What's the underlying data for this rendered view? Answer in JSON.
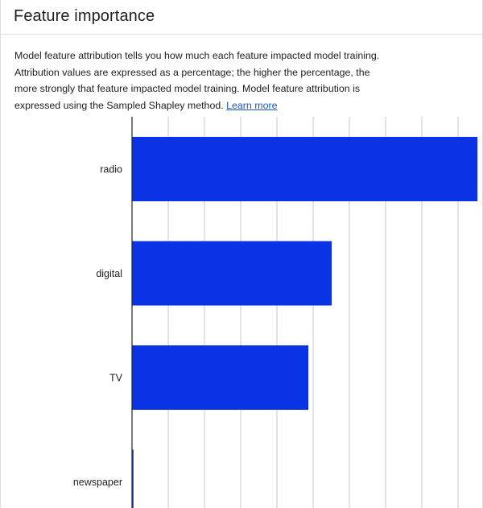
{
  "header": {
    "title": "Feature importance"
  },
  "description": {
    "text": "Model feature attribution tells you how much each feature impacted model training. Attribution values are expressed as a percentage; the higher the percentage, the more strongly that feature impacted model training. Model feature attribution is expressed using the Sampled Shapley method. ",
    "link_label": "Learn more"
  },
  "colors": {
    "bar": "#0a33e6",
    "gridline": "#c8c8c8",
    "axis": "#202124"
  },
  "chart_data": {
    "type": "bar",
    "orientation": "horizontal",
    "categories": [
      "radio",
      "digital",
      "TV",
      "newspaper"
    ],
    "values": [
      0.96,
      0.555,
      0.49,
      0.004
    ],
    "xlim": [
      0,
      1
    ],
    "grid": true,
    "title": "",
    "xlabel": "",
    "ylabel": ""
  }
}
